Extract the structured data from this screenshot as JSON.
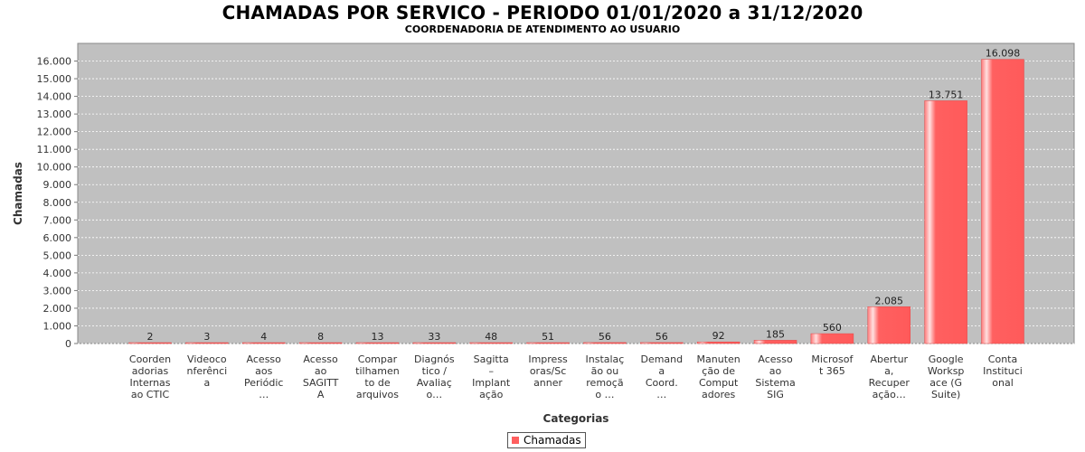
{
  "chart_data": {
    "type": "bar",
    "title": "CHAMADAS POR SERVICO - PERIODO 01/01/2020 a 31/12/2020",
    "subtitle": "COORDENADORIA DE ATENDIMENTO AO USUARIO",
    "xlabel": "Categorias",
    "ylabel": "Chamadas",
    "ylim": [
      0,
      17000
    ],
    "yticks": [
      0,
      1000,
      2000,
      3000,
      4000,
      5000,
      6000,
      7000,
      8000,
      9000,
      10000,
      11000,
      12000,
      13000,
      14000,
      15000,
      16000
    ],
    "ytick_labels": [
      "0",
      "1.000",
      "2.000",
      "3.000",
      "4.000",
      "5.000",
      "6.000",
      "7.000",
      "8.000",
      "9.000",
      "10.000",
      "11.000",
      "12.000",
      "13.000",
      "14.000",
      "15.000",
      "16.000"
    ],
    "categories": [
      [
        "Coorden",
        "adorias",
        "Internas",
        "ao CTIC"
      ],
      [
        "Videoco",
        "nferênci",
        "a"
      ],
      [
        "Acesso",
        "aos",
        "Periódic",
        "…"
      ],
      [
        "Acesso",
        "ao",
        "SAGITT",
        "A"
      ],
      [
        "Compar",
        "tilhamen",
        "to de",
        "arquivos"
      ],
      [
        "Diagnós",
        "tico /",
        "Avaliaç",
        "o…"
      ],
      [
        "Sagitta",
        "–",
        "Implant",
        "ação"
      ],
      [
        "Impress",
        "oras/Sc",
        "anner"
      ],
      [
        "Instalaç",
        "ão ou",
        "remoçã",
        "o …"
      ],
      [
        "Demand",
        "a",
        "Coord.",
        "…"
      ],
      [
        "Manuten",
        "ção de",
        "Comput",
        "adores"
      ],
      [
        "Acesso",
        "ao",
        "Sistema",
        "SIG"
      ],
      [
        "Microsof",
        "t 365"
      ],
      [
        "Abertur",
        "a,",
        "Recuper",
        "ação…"
      ],
      [
        "Google",
        "Worksp",
        "ace (G",
        "Suite)"
      ],
      [
        "Conta",
        "Instituci",
        "onal"
      ]
    ],
    "series": [
      {
        "name": "Chamadas",
        "values": [
          2,
          3,
          4,
          8,
          13,
          33,
          48,
          51,
          56,
          56,
          92,
          185,
          560,
          2085,
          13751,
          16098
        ],
        "value_labels": [
          "2",
          "3",
          "4",
          "8",
          "13",
          "33",
          "48",
          "51",
          "56",
          "56",
          "92",
          "185",
          "560",
          "2.085",
          "13.751",
          "16.098"
        ]
      }
    ],
    "grid": true,
    "legend_position": "bottom-center",
    "colors": {
      "bar": "#ff5f5f",
      "bar_highlight": "#ffd6d6",
      "plot_background": "#c0c0c0",
      "gridline": "#ffffff"
    }
  }
}
